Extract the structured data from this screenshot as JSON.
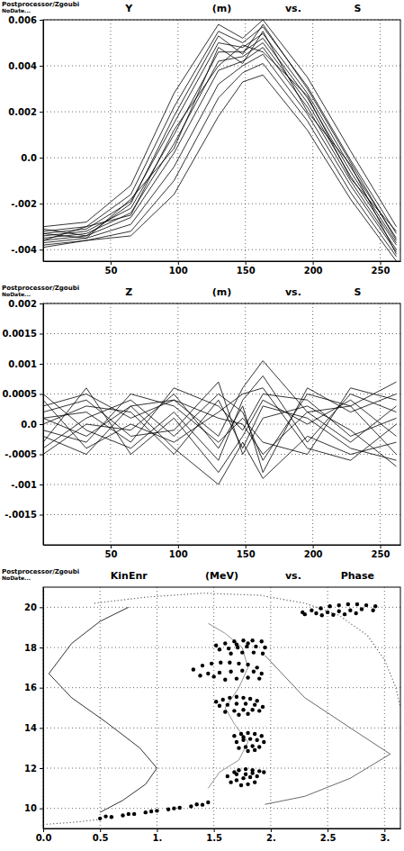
{
  "chart_data": [
    {
      "type": "line",
      "annotations": [
        "Postprocessor/Zgoubi",
        "NoDate..."
      ],
      "title": "Y (m) vs. S",
      "color": "#000000",
      "grid": true,
      "xlim": [
        0,
        265
      ],
      "xticks": [
        50,
        100,
        150,
        200,
        250
      ],
      "ylim": [
        -0.0045,
        0.006
      ],
      "yticks": [
        {
          "value": -0.004,
          "label": "-.004"
        },
        {
          "value": -0.002,
          "label": "-.002"
        },
        {
          "value": 0,
          "label": "0.0"
        },
        0.002,
        0.004,
        0.006
      ],
      "x": [
        0,
        32,
        65,
        97,
        130,
        148,
        163,
        196,
        228,
        262
      ],
      "series": [
        {
          "values": [
            -0.003,
            -0.0028,
            -0.0012,
            0.0028,
            0.0058,
            0.0052,
            0.006,
            0.0035,
            0.0003,
            -0.003
          ]
        },
        {
          "values": [
            -0.0032,
            -0.003,
            -0.0016,
            0.0022,
            0.0055,
            0.005,
            0.0057,
            0.0031,
            -0.0001,
            -0.0033
          ]
        },
        {
          "values": [
            -0.0033,
            -0.0031,
            -0.0019,
            0.0015,
            0.005,
            0.0048,
            0.0054,
            0.0028,
            -0.0004,
            -0.0035
          ]
        },
        {
          "values": [
            -0.0034,
            -0.0032,
            -0.0022,
            0.001,
            0.0046,
            0.0046,
            0.0052,
            0.0026,
            -0.0006,
            -0.0037
          ]
        },
        {
          "values": [
            -0.0035,
            -0.0033,
            -0.0024,
            0.0006,
            0.0042,
            0.0044,
            0.005,
            0.0024,
            -0.0008,
            -0.0038
          ]
        },
        {
          "values": [
            -0.0036,
            -0.0034,
            -0.0026,
            0.0002,
            0.0038,
            0.0042,
            0.0048,
            0.0022,
            -0.001,
            -0.004
          ]
        },
        {
          "values": [
            -0.0037,
            -0.0035,
            -0.0029,
            -0.0004,
            0.0032,
            0.004,
            0.0045,
            0.0019,
            -0.0012,
            -0.0041
          ]
        },
        {
          "values": [
            -0.0038,
            -0.0036,
            -0.0032,
            -0.001,
            0.0026,
            0.0037,
            0.0041,
            0.0016,
            -0.0015,
            -0.0043
          ]
        },
        {
          "values": [
            -0.0039,
            -0.0036,
            -0.0034,
            -0.0016,
            0.0018,
            0.0033,
            0.0036,
            0.0012,
            -0.0018,
            -0.0045
          ]
        },
        {
          "values": [
            -0.0031,
            -0.0034,
            -0.002,
            0.0018,
            0.0053,
            0.0045,
            0.0058,
            0.003,
            -0.0002,
            -0.0036
          ]
        },
        {
          "values": [
            -0.0036,
            -0.003,
            -0.0025,
            0.0012,
            0.004,
            0.0049,
            0.0046,
            0.0027,
            -0.0009,
            -0.0032
          ]
        },
        {
          "values": [
            -0.0033,
            -0.0035,
            -0.0018,
            0.0004,
            0.0048,
            0.0041,
            0.0055,
            0.002,
            -0.0003,
            -0.0042
          ]
        }
      ]
    },
    {
      "type": "line",
      "annotations": [
        "Postprocessor/Zgoubi",
        "NoDate..."
      ],
      "title": "Z (m) vs. S",
      "color": "#000000",
      "grid": true,
      "xlim": [
        0,
        265
      ],
      "xticks": [
        50,
        100,
        150,
        200,
        250
      ],
      "ylim": [
        -0.002,
        0.002
      ],
      "yticks": [
        {
          "value": -0.0015,
          "label": "-.0015"
        },
        {
          "value": -0.001,
          "label": "-.001"
        },
        {
          "value": -0.0005,
          "label": "-.0005"
        },
        {
          "value": 0,
          "label": "0.0"
        },
        0.0005,
        0.001,
        0.0015,
        0.002
      ],
      "x": [
        0,
        32,
        65,
        97,
        130,
        148,
        163,
        196,
        228,
        262
      ],
      "series": [
        {
          "values": [
            0.0003,
            0.0005,
            0.0001,
            0.0004,
            -0.0002,
            0.0006,
            0.00105,
            0.0002,
            0.0003,
            0.0007
          ]
        },
        {
          "values": [
            -0.0002,
            -0.0005,
            0.0003,
            -0.0004,
            -0.001,
            -0.0003,
            -0.0009,
            -0.0002,
            -0.0005,
            -0.0003
          ]
        },
        {
          "values": [
            0.0001,
            0.0002,
            -0.0003,
            0.0006,
            0.0003,
            -0.0001,
            0.0005,
            0.0004,
            -0.0002,
            0.0001
          ]
        },
        {
          "values": [
            -0.0004,
            0.0001,
            0.0004,
            -0.0002,
            0.0005,
            0.0002,
            -0.0006,
            0.0005,
            0.0003,
            -0.0005
          ]
        },
        {
          "values": [
            0.0005,
            -0.0001,
            -0.0004,
            0.0002,
            -0.0006,
            0.0004,
            0.0008,
            -0.0003,
            0.0005,
            0.0002
          ]
        },
        {
          "values": [
            0,
            0.0003,
            0.0002,
            -0.0005,
            0.0004,
            -0.0004,
            0.0003,
            0.0001,
            -0.0004,
            -0.0006
          ]
        },
        {
          "values": [
            -0.0001,
            -0.0003,
            0.0005,
            0.0003,
            -0.0003,
            0.0001,
            -0.0003,
            -0.0005,
            0.0006,
            0.0004
          ]
        },
        {
          "values": [
            0.0002,
            0.0004,
            -0.0002,
            -0.0001,
            0.0007,
            -0.0005,
            0.0001,
            0.0003,
            -0.0001,
            -0.0007
          ]
        },
        {
          "values": [
            -0.0005,
            0,
            -0.0001,
            0.0005,
            -0.0004,
            0.0003,
            -0.0008,
            0.0006,
            0.0002,
            0.0005
          ]
        },
        {
          "values": [
            0.0004,
            -0.0004,
            0,
            -0.0003,
            0.0002,
            0.0005,
            0.0006,
            -0.0004,
            -0.0006,
            0
          ]
        },
        {
          "values": [
            -0.0003,
            0.0006,
            -0.0005,
            0.0001,
            -0.0008,
            -0.0002,
            0.0004,
            0,
            0.0004,
            -0.0002
          ]
        },
        {
          "values": [
            0.0001,
            -0.0002,
            0.0003,
            0.0004,
            0.0001,
            0,
            -0.0005,
            0.0002,
            -0.0003,
            0.0003
          ]
        }
      ]
    },
    {
      "type": "scatter",
      "annotations": [
        "Postprocessor/Zgoubi",
        "NoDate..."
      ],
      "title": "KinEnr (MeV) vs. Phase",
      "color": "#000000",
      "grid": true,
      "xlim": [
        0,
        3.14
      ],
      "xticks": [
        {
          "value": 0,
          "label": "0.0"
        },
        0.5,
        {
          "value": 1,
          "label": "1."
        },
        1.5,
        {
          "value": 2,
          "label": "2."
        },
        2.5,
        {
          "value": 3,
          "label": "3."
        }
      ],
      "ylim": [
        9,
        21
      ],
      "yticks": [
        10,
        12,
        14,
        16,
        18,
        20
      ],
      "series": [
        {
          "type": "line",
          "line_style": "solid",
          "color": "#000000",
          "x": [
            0.75,
            0.5,
            0.25,
            0.05,
            0.25,
            0.55,
            0.85,
            1.0,
            0.9,
            0.7,
            0.5
          ],
          "values": [
            20.0,
            19.3,
            18.2,
            16.7,
            15.5,
            14.3,
            13.0,
            12.0,
            11.2,
            10.4,
            9.8
          ]
        },
        {
          "type": "line",
          "line_style": "solid",
          "color": "#777777",
          "x": [
            1.45,
            1.6,
            1.75,
            1.8,
            1.72,
            1.6,
            1.68,
            1.8,
            1.72,
            1.55,
            1.45
          ],
          "values": [
            19.2,
            18.7,
            18.0,
            17.0,
            16.0,
            15.0,
            14.2,
            13.3,
            12.4,
            11.8,
            11.0
          ]
        },
        {
          "type": "line",
          "line_style": "solid",
          "color": "#444444",
          "x": [
            1.95,
            2.3,
            2.7,
            3.05,
            2.7,
            2.3,
            1.95
          ],
          "values": [
            17.6,
            15.5,
            14.0,
            12.7,
            11.5,
            10.6,
            10.2
          ]
        },
        {
          "type": "line",
          "line_style": "dotted",
          "color": "#555555",
          "x": [
            0.45,
            0.9,
            1.4,
            1.9,
            2.3,
            2.6,
            2.85,
            3.0,
            3.1,
            3.14
          ],
          "values": [
            20.2,
            20.5,
            20.7,
            20.6,
            20.2,
            19.6,
            18.6,
            17.4,
            16.0,
            15.0
          ]
        },
        {
          "type": "line",
          "line_style": "dotted",
          "color": "#555555",
          "x": [
            0.0,
            0.25,
            0.5
          ],
          "values": [
            9.2,
            9.3,
            9.45
          ]
        },
        {
          "type": "scatter",
          "marker": "dot",
          "color": "#000000",
          "x": [
            0.5,
            0.6,
            0.7,
            0.8,
            0.9,
            1.0,
            1.1,
            1.2,
            1.3,
            1.4,
            1.45,
            0.55,
            0.75,
            0.95,
            1.15,
            1.35
          ],
          "values": [
            9.5,
            9.57,
            9.65,
            9.72,
            9.8,
            9.88,
            9.95,
            10.03,
            10.1,
            10.18,
            10.3,
            9.6,
            9.72,
            9.85,
            10.0,
            10.2
          ]
        },
        {
          "type": "scatter",
          "marker": "dot",
          "color": "#000000",
          "x": [
            1.62,
            1.68,
            1.72,
            1.78,
            1.84,
            1.9,
            1.94,
            1.65,
            1.7,
            1.76,
            1.82,
            1.88,
            1.74,
            1.8,
            1.86,
            1.7,
            1.78,
            1.84
          ],
          "values": [
            11.6,
            11.8,
            11.9,
            11.95,
            11.9,
            11.85,
            11.8,
            11.3,
            11.4,
            11.5,
            11.55,
            11.6,
            11.15,
            11.2,
            11.3,
            11.7,
            11.7,
            11.75
          ]
        },
        {
          "type": "scatter",
          "marker": "dot",
          "color": "#000000",
          "x": [
            1.68,
            1.74,
            1.8,
            1.86,
            1.92,
            1.7,
            1.76,
            1.82,
            1.88,
            1.94,
            1.72,
            1.78,
            1.84,
            1.9,
            1.8,
            1.86,
            1.76
          ],
          "values": [
            13.6,
            13.7,
            13.75,
            13.7,
            13.6,
            13.3,
            13.4,
            13.45,
            13.4,
            13.3,
            13.0,
            13.05,
            13.1,
            13.05,
            12.85,
            12.9,
            13.55
          ]
        },
        {
          "type": "scatter",
          "marker": "dot",
          "color": "#000000",
          "x": [
            1.52,
            1.58,
            1.64,
            1.7,
            1.76,
            1.82,
            1.88,
            1.55,
            1.62,
            1.7,
            1.78,
            1.86,
            1.93,
            1.6,
            1.68,
            1.76,
            1.84,
            1.9,
            1.72,
            1.8
          ],
          "values": [
            15.3,
            15.4,
            15.5,
            15.55,
            15.5,
            15.45,
            15.35,
            15.1,
            15.15,
            15.2,
            15.2,
            15.15,
            15.05,
            14.8,
            14.85,
            14.9,
            14.9,
            14.85,
            14.65,
            14.7
          ]
        },
        {
          "type": "scatter",
          "marker": "dot",
          "color": "#000000",
          "x": [
            1.32,
            1.4,
            1.48,
            1.56,
            1.64,
            1.72,
            1.8,
            1.88,
            1.45,
            1.55,
            1.65,
            1.75,
            1.85,
            1.92,
            1.6,
            1.7,
            1.8,
            1.9,
            1.5,
            1.38
          ],
          "values": [
            16.9,
            17.1,
            17.2,
            17.25,
            17.25,
            17.2,
            17.15,
            17.0,
            16.7,
            16.75,
            16.8,
            16.85,
            16.8,
            16.7,
            16.4,
            16.45,
            16.5,
            16.45,
            16.55,
            16.6
          ]
        },
        {
          "type": "scatter",
          "marker": "dot",
          "color": "#000000",
          "x": [
            1.52,
            1.6,
            1.68,
            1.76,
            1.84,
            1.92,
            1.55,
            1.63,
            1.71,
            1.79,
            1.87,
            1.95,
            1.65,
            1.75,
            1.85,
            1.93,
            1.7,
            1.8
          ],
          "values": [
            18.1,
            18.2,
            18.3,
            18.35,
            18.35,
            18.3,
            17.9,
            17.95,
            18.0,
            18.05,
            18.05,
            18.0,
            17.7,
            17.75,
            17.75,
            17.7,
            18.15,
            18.2
          ]
        },
        {
          "type": "scatter",
          "marker": "dot",
          "color": "#000000",
          "x": [
            2.28,
            2.36,
            2.44,
            2.52,
            2.6,
            2.68,
            2.76,
            2.84,
            2.92,
            2.3,
            2.4,
            2.5,
            2.6,
            2.7,
            2.8,
            2.9,
            2.45,
            2.55,
            2.65,
            2.75
          ],
          "values": [
            19.75,
            19.85,
            19.95,
            20.05,
            20.1,
            20.15,
            20.15,
            20.1,
            20.05,
            19.65,
            19.7,
            19.75,
            19.8,
            19.85,
            19.9,
            19.85,
            19.6,
            19.62,
            19.65,
            19.7
          ]
        }
      ]
    }
  ]
}
